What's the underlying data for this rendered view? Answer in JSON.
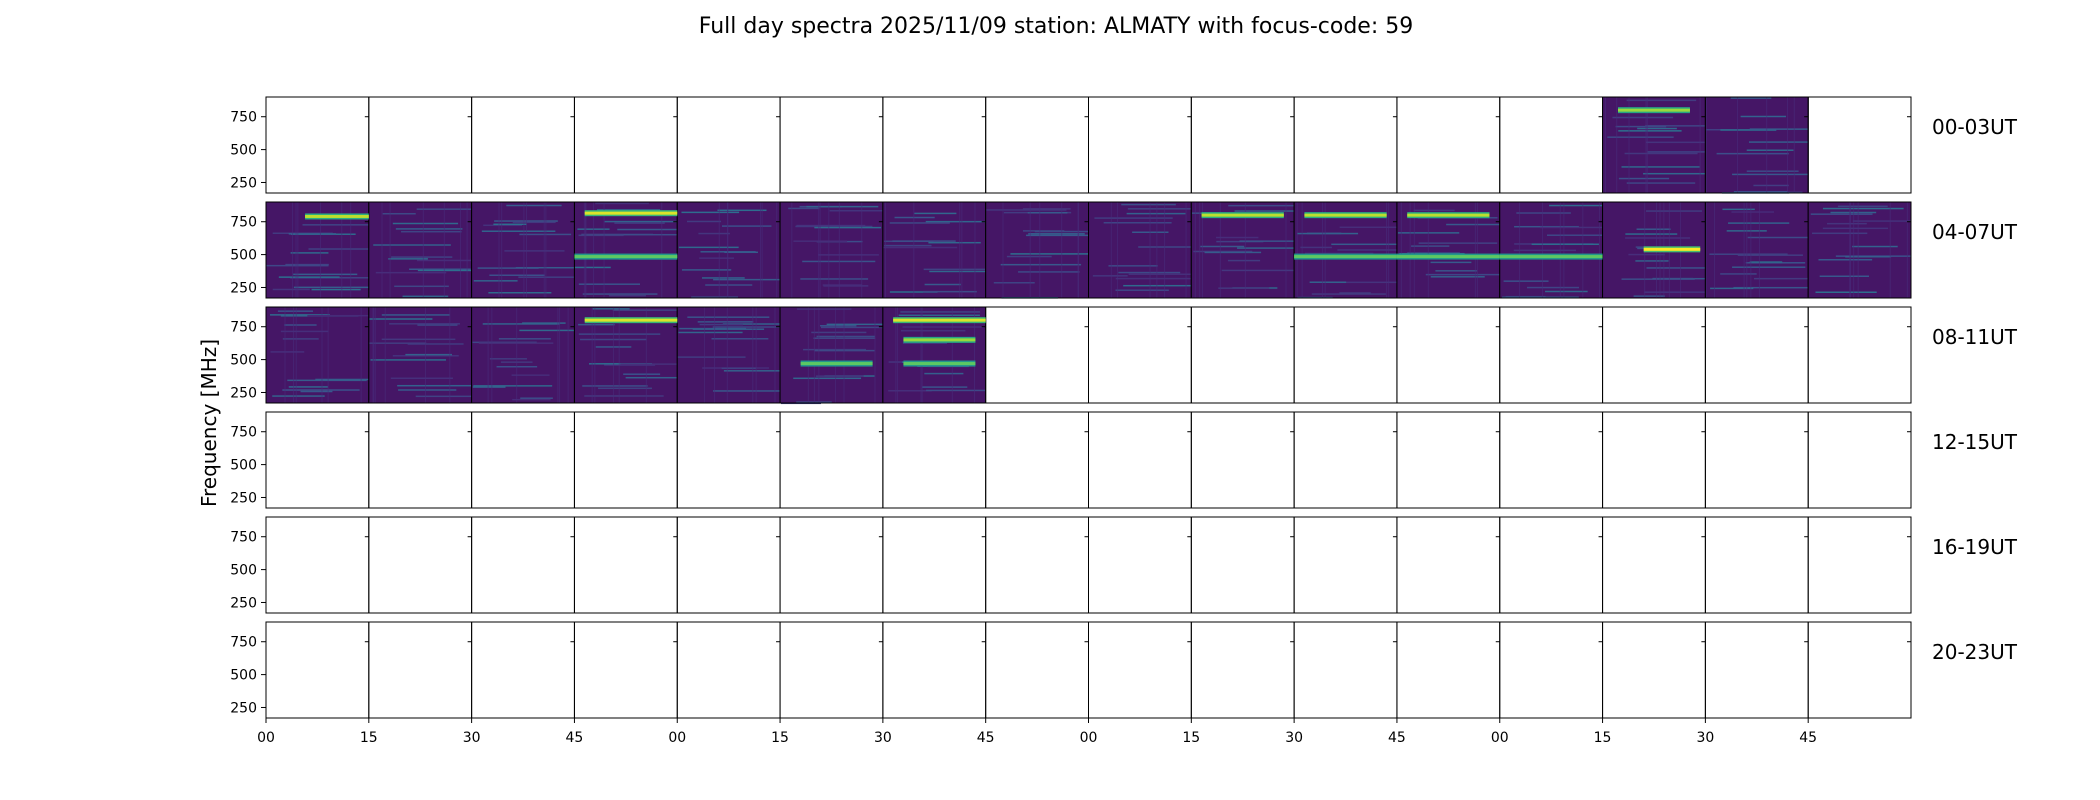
{
  "title": "Full day spectra 2025/11/09 station: ALMATY with focus-code: 59",
  "chart_data": {
    "type": "heatmap",
    "title": "Full day spectra 2025/11/09 station: ALMATY with focus-code: 59",
    "ylabel": "Frequency [MHz]",
    "xlabel": "",
    "ylim": [
      170,
      900
    ],
    "yticks": [
      250,
      500,
      750
    ],
    "xtick_labels": [
      "00",
      "15",
      "30",
      "45",
      "00",
      "15",
      "30",
      "45",
      "00",
      "15",
      "30",
      "45",
      "00",
      "15",
      "30",
      "45"
    ],
    "row_labels": [
      "00-03UT",
      "04-07UT",
      "08-11UT",
      "12-15UT",
      "16-19UT",
      "20-23UT"
    ],
    "panels_per_row": 16,
    "panel_minutes": 15,
    "colormap": "viridis",
    "data_present": [
      [
        0,
        0,
        0,
        0,
        0,
        0,
        0,
        0,
        0,
        0,
        0,
        0,
        0,
        1,
        1,
        0
      ],
      [
        1,
        1,
        1,
        1,
        1,
        1,
        1,
        1,
        1,
        1,
        1,
        1,
        1,
        1,
        1,
        1
      ],
      [
        1,
        1,
        1,
        1,
        1,
        1,
        1,
        0,
        0,
        0,
        0,
        0,
        0,
        0,
        0,
        0
      ],
      [
        0,
        0,
        0,
        0,
        0,
        0,
        0,
        0,
        0,
        0,
        0,
        0,
        0,
        0,
        0,
        0
      ],
      [
        0,
        0,
        0,
        0,
        0,
        0,
        0,
        0,
        0,
        0,
        0,
        0,
        0,
        0,
        0,
        0
      ],
      [
        0,
        0,
        0,
        0,
        0,
        0,
        0,
        0,
        0,
        0,
        0,
        0,
        0,
        0,
        0,
        0
      ]
    ],
    "bright_bands": [
      {
        "row": 0,
        "panels": [
          13
        ],
        "freq": 800,
        "x_frac": [
          0.15,
          0.85
        ],
        "intensity": 0.85
      },
      {
        "row": 1,
        "panels": [
          3
        ],
        "freq": 815,
        "x_frac": [
          0.1,
          1.0
        ],
        "intensity": 0.95
      },
      {
        "row": 1,
        "panels": [
          9,
          10,
          11
        ],
        "freq": 800,
        "x_frac": [
          0.1,
          0.9
        ],
        "intensity": 0.9
      },
      {
        "row": 1,
        "panels": [
          0
        ],
        "freq": 790,
        "x_frac": [
          0.38,
          1.0
        ],
        "intensity": 0.9
      },
      {
        "row": 1,
        "panels": [
          3,
          10,
          11,
          12
        ],
        "freq": 485,
        "x_frac": [
          0.0,
          1.0
        ],
        "intensity": 0.75
      },
      {
        "row": 1,
        "panels": [
          13
        ],
        "freq": 540,
        "x_frac": [
          0.4,
          0.95
        ],
        "intensity": 1.0
      },
      {
        "row": 2,
        "panels": [
          3,
          6
        ],
        "freq": 800,
        "x_frac": [
          0.1,
          1.0
        ],
        "intensity": 0.95
      },
      {
        "row": 2,
        "panels": [
          6
        ],
        "freq": 650,
        "x_frac": [
          0.2,
          0.9
        ],
        "intensity": 0.85
      },
      {
        "row": 2,
        "panels": [
          5,
          6
        ],
        "freq": 470,
        "x_frac": [
          0.2,
          0.9
        ],
        "intensity": 0.75
      }
    ]
  }
}
